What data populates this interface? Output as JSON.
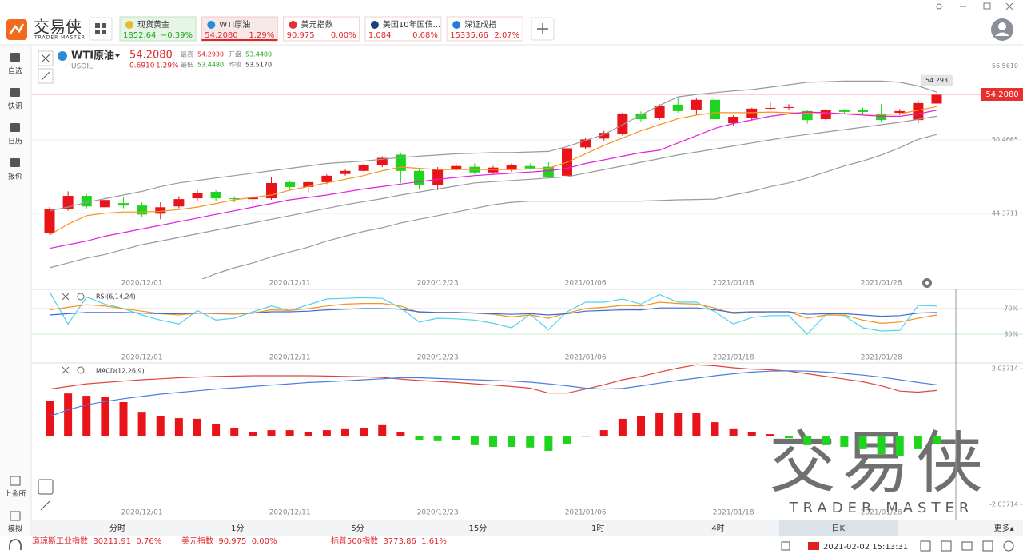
{
  "app": {
    "logo": "交易侠",
    "logo_sub": "TRADER MASTER"
  },
  "tickers": [
    {
      "name": "现货黄金",
      "price": "1852.64",
      "change": "−0.39%"
    },
    {
      "name": "WTI原油",
      "price": "54.2080",
      "change": "1.29%"
    },
    {
      "name": "美元指数",
      "price": "90.975",
      "change": "0.00%"
    },
    {
      "name": "美国10年国债...",
      "price": "1.084",
      "change": "0.68%"
    },
    {
      "name": "深证成指",
      "price": "15335.66",
      "change": "2.07%"
    }
  ],
  "sidebar_top": [
    "自选",
    "快讯",
    "日历",
    "报价"
  ],
  "sidebar_bottom": [
    "上金所",
    "模拟"
  ],
  "instrument": {
    "name": "WTI原油",
    "code": "USOIL",
    "price": "54.2080",
    "change": "0.6910",
    "change_pct": "1.29%",
    "stats": [
      {
        "label": "最高",
        "value": "54.2930"
      },
      {
        "label": "开盘",
        "value": "53.4480"
      },
      {
        "label": "最低",
        "value": "53.4480"
      },
      {
        "label": "昨收",
        "value": "53.5170"
      }
    ]
  },
  "chart_data": [
    {
      "type": "candlestick",
      "categories": [
        null,
        null,
        null,
        null,
        null,
        "2020/12/01",
        null,
        null,
        null,
        null,
        null,
        null,
        null,
        "2020/12/11",
        null,
        null,
        null,
        null,
        null,
        null,
        null,
        "2020/12/23",
        null,
        null,
        null,
        null,
        null,
        null,
        null,
        "2021/01/06",
        null,
        null,
        null,
        null,
        null,
        null,
        null,
        "2021/01/18",
        null,
        null,
        null,
        null,
        null,
        null,
        null,
        "2021/01/28",
        null,
        null,
        null
      ],
      "open": [
        42.76,
        44.76,
        45.83,
        44.89,
        45.23,
        45.03,
        44.36,
        44.96,
        45.63,
        46.16,
        45.63,
        45.56,
        45.63,
        46.96,
        46.56,
        46.96,
        47.63,
        47.89,
        48.36,
        49.23,
        47.89,
        46.69,
        48.03,
        48.23,
        47.76,
        47.96,
        48.29,
        48.23,
        47.49,
        49.83,
        50.56,
        50.96,
        52.63,
        52.23,
        53.36,
        52.96,
        53.76,
        51.83,
        52.23,
        53.03,
        53.09,
        52.83,
        52.16,
        52.89,
        52.89,
        52.63,
        52.69,
        52.09,
        53.448
      ],
      "high": [
        44.9,
        46.2,
        46.0,
        45.6,
        45.7,
        45.3,
        45.3,
        45.8,
        46.3,
        46.3,
        45.8,
        45.9,
        47.4,
        47.1,
        47.1,
        47.6,
        48.0,
        48.5,
        49.1,
        49.4,
        48.0,
        48.2,
        48.5,
        48.5,
        48.3,
        48.5,
        48.5,
        48.6,
        50.4,
        50.6,
        51.2,
        52.7,
        52.8,
        53.4,
        53.9,
        53.9,
        53.8,
        52.5,
        53.1,
        53.6,
        53.4,
        52.9,
        53.0,
        53.0,
        53.1,
        53.4,
        53.0,
        53.7,
        54.293
      ],
      "low": [
        42.6,
        44.6,
        44.8,
        44.7,
        44.8,
        44.1,
        43.9,
        44.8,
        45.4,
        45.4,
        45.3,
        44.9,
        45.5,
        46.3,
        46.1,
        46.8,
        47.5,
        47.8,
        48.2,
        46.9,
        46.4,
        46.3,
        47.9,
        47.6,
        47.6,
        47.8,
        48.0,
        47.3,
        47.3,
        49.7,
        50.4,
        50.8,
        51.9,
        52.1,
        52.7,
        52.5,
        52.0,
        51.6,
        52.1,
        52.9,
        52.9,
        51.8,
        52.0,
        52.6,
        52.5,
        51.9,
        52.5,
        51.8,
        53.448
      ],
      "close": [
        44.76,
        45.83,
        44.96,
        45.49,
        45.03,
        44.29,
        44.89,
        45.56,
        46.09,
        45.63,
        45.56,
        45.69,
        46.89,
        46.56,
        46.96,
        47.49,
        47.89,
        48.36,
        48.96,
        47.89,
        46.76,
        48.03,
        48.29,
        47.76,
        48.16,
        48.36,
        48.09,
        47.36,
        49.76,
        50.49,
        51.03,
        52.63,
        52.16,
        53.29,
        52.83,
        53.76,
        52.16,
        52.36,
        53.03,
        53.09,
        53.16,
        52.09,
        52.89,
        52.76,
        52.76,
        52.09,
        52.83,
        53.49,
        54.208
      ],
      "series": [
        {
          "color": "#9a9a9a",
          "values": [
            44.6,
            44.9,
            45.3,
            45.6,
            45.9,
            46.2,
            46.6,
            46.9,
            47.1,
            47.3,
            47.5,
            47.7,
            47.9,
            48.1,
            48.3,
            48.5,
            48.6,
            48.7,
            48.85,
            49.0,
            49.1,
            49.2,
            49.3,
            49.35,
            49.4,
            49.4,
            49.45,
            49.5,
            49.9,
            50.4,
            50.9,
            51.7,
            52.5,
            53.3,
            54.0,
            54.2,
            54.35,
            54.5,
            54.6,
            54.8,
            55.0,
            55.2,
            55.25,
            55.3,
            55.3,
            55.3,
            55.2,
            54.9,
            54.4
          ]
        },
        {
          "color": "#9a9a9a",
          "values": [
            39.9,
            40.3,
            40.7,
            41.0,
            41.4,
            41.8,
            42.1,
            42.4,
            42.7,
            43.0,
            43.3,
            43.6,
            43.9,
            44.2,
            44.5,
            44.8,
            45.1,
            45.35,
            45.6,
            45.9,
            46.15,
            46.4,
            46.65,
            46.9,
            47.0,
            47.1,
            47.2,
            47.3,
            47.4,
            47.7,
            48.0,
            48.3,
            48.6,
            48.9,
            49.2,
            49.45,
            49.7,
            49.95,
            50.2,
            50.45,
            50.7,
            50.9,
            51.1,
            51.3,
            51.5,
            51.7,
            51.9,
            52.15,
            52.4
          ]
        },
        {
          "color": "#9a9a9a",
          "values": [
            null,
            null,
            null,
            null,
            null,
            null,
            null,
            38.3,
            38.8,
            39.4,
            39.9,
            40.3,
            40.8,
            41.2,
            41.6,
            42.1,
            42.5,
            42.9,
            43.2,
            43.6,
            43.9,
            44.2,
            44.5,
            44.8,
            45.1,
            45.3,
            45.4,
            45.4,
            45.4,
            45.4,
            45.4,
            45.4,
            45.4,
            45.45,
            45.5,
            45.53,
            45.56,
            45.9,
            46.2,
            46.6,
            46.9,
            47.3,
            47.8,
            48.3,
            48.7,
            49.2,
            49.8,
            50.5,
            50.9
          ]
        },
        {
          "color": "#f7941d",
          "values": [
            42.6,
            43.5,
            44.2,
            44.4,
            44.5,
            44.5,
            44.55,
            44.7,
            44.9,
            45.2,
            45.5,
            45.7,
            45.9,
            46.3,
            46.6,
            46.9,
            47.2,
            47.5,
            47.9,
            48.2,
            48.1,
            48.0,
            48.0,
            48.0,
            48.0,
            48.0,
            48.05,
            48.1,
            48.6,
            49.3,
            50.0,
            50.6,
            51.2,
            51.7,
            52.2,
            52.5,
            52.7,
            52.7,
            52.7,
            52.75,
            52.7,
            52.65,
            52.6,
            52.6,
            52.6,
            52.55,
            52.6,
            52.9,
            53.2
          ]
        },
        {
          "color": "#e21ee2",
          "values": [
            41.5,
            41.8,
            42.1,
            42.5,
            42.8,
            43.1,
            43.4,
            43.7,
            44.0,
            44.3,
            44.6,
            44.9,
            45.2,
            45.5,
            45.7,
            45.9,
            46.15,
            46.4,
            46.6,
            46.8,
            47.0,
            47.2,
            47.35,
            47.5,
            47.6,
            47.7,
            47.8,
            47.9,
            48.1,
            48.5,
            48.8,
            49.1,
            49.4,
            49.6,
            50.2,
            50.8,
            51.4,
            51.8,
            52.1,
            52.4,
            52.6,
            52.75,
            52.7,
            52.6,
            52.5,
            52.4,
            52.4,
            52.6,
            52.9
          ]
        }
      ],
      "up_color": "#e8141a",
      "down_color": "#1ed41e",
      "ylim": [
        39.04,
        58.23
      ],
      "yticks": [
        {
          "value": 56.561,
          "label": "56.5610"
        },
        50.4665,
        44.3711
      ],
      "grid": true
    },
    {
      "type": "line",
      "title": "RSI(6,14,24)",
      "categories": [
        null,
        null,
        null,
        null,
        null,
        "2020/12/01",
        null,
        null,
        null,
        null,
        null,
        null,
        null,
        "2020/12/11",
        null,
        null,
        null,
        null,
        null,
        null,
        null,
        "2020/12/23",
        null,
        null,
        null,
        null,
        null,
        null,
        null,
        "2021/01/06",
        null,
        null,
        null,
        null,
        null,
        null,
        null,
        "2021/01/18",
        null,
        null,
        null,
        null,
        null,
        null,
        null,
        "2021/01/28",
        null,
        null,
        null
      ],
      "series": [
        {
          "color": "#4fd2f0",
          "values": [
            96,
            46,
            88,
            77,
            70,
            60,
            52,
            46,
            67,
            52,
            55,
            65,
            74,
            67,
            76,
            85,
            86,
            87,
            86,
            71,
            49,
            55,
            54,
            52,
            47,
            40,
            61,
            37,
            65,
            80,
            80,
            85,
            77,
            92,
            80,
            80,
            65,
            46,
            56,
            59,
            59,
            30,
            61,
            59,
            40,
            35,
            36,
            75,
            74
          ]
        },
        {
          "color": "#f7941d",
          "values": [
            68,
            72,
            76,
            74,
            70,
            66,
            62,
            60,
            63,
            62,
            61,
            63,
            68,
            67,
            70,
            74,
            77,
            78,
            78,
            74,
            64,
            64,
            64,
            63,
            61,
            57,
            60,
            55,
            63,
            70,
            72,
            75,
            74,
            80,
            78,
            77,
            71,
            62,
            64,
            65,
            65,
            55,
            60,
            60,
            52,
            47,
            49,
            55,
            60
          ]
        },
        {
          "color": "#3a6fd8",
          "values": [
            60,
            62,
            64,
            64,
            64,
            63,
            62,
            62,
            63,
            63,
            63,
            63,
            65,
            65,
            66,
            68,
            69,
            70,
            70,
            69,
            65,
            64,
            64,
            63,
            62,
            61,
            62,
            60,
            62,
            66,
            67,
            68,
            68,
            71,
            71,
            71,
            68,
            64,
            65,
            65,
            65,
            61,
            62,
            62,
            60,
            58,
            59,
            63,
            64
          ]
        }
      ],
      "ylim": [
        -12.5,
        100
      ],
      "yticks": [
        {
          "value": 70,
          "label": "70%"
        },
        {
          "value": 30,
          "label": "30%"
        }
      ],
      "grid": true
    },
    {
      "type": "bar",
      "title": "MACD(12,26,9)",
      "categories": [
        null,
        null,
        null,
        null,
        null,
        "2020/12/01",
        null,
        null,
        null,
        null,
        null,
        null,
        null,
        "2020/12/11",
        null,
        null,
        null,
        null,
        null,
        null,
        null,
        "2020/12/23",
        null,
        null,
        null,
        null,
        null,
        null,
        null,
        "2021/01/06",
        null,
        null,
        null,
        null,
        null,
        null,
        null,
        "2021/01/18",
        null,
        null,
        null,
        null,
        null,
        null,
        null,
        "2021/01/28",
        null,
        null,
        null
      ],
      "values": [
        1.06,
        1.29,
        1.22,
        1.18,
        1.03,
        0.74,
        0.6,
        0.55,
        0.53,
        0.38,
        0.24,
        0.14,
        0.19,
        0.19,
        0.14,
        0.19,
        0.22,
        0.26,
        0.34,
        0.14,
        -0.12,
        -0.14,
        -0.12,
        -0.26,
        -0.31,
        -0.31,
        -0.33,
        -0.43,
        -0.24,
        0.02,
        0.19,
        0.53,
        0.6,
        0.72,
        0.7,
        0.7,
        0.43,
        0.22,
        0.14,
        0.07,
        -0.05,
        -0.26,
        -0.26,
        -0.31,
        -0.38,
        -0.53,
        -0.58,
        -0.38,
        -0.24
      ],
      "series": [
        {
          "color": "#e0453a",
          "values": [
            1.42,
            1.5,
            1.58,
            1.62,
            1.66,
            1.7,
            1.73,
            1.76,
            1.78,
            1.8,
            1.81,
            1.82,
            1.82,
            1.82,
            1.82,
            1.81,
            1.8,
            1.79,
            1.77,
            1.72,
            1.68,
            1.65,
            1.62,
            1.58,
            1.54,
            1.5,
            1.45,
            1.3,
            1.3,
            1.42,
            1.55,
            1.7,
            1.8,
            1.93,
            2.05,
            2.15,
            2.12,
            2.06,
            2.02,
            2.0,
            1.96,
            1.88,
            1.8,
            1.72,
            1.64,
            1.52,
            1.36,
            1.33,
            1.38
          ]
        },
        {
          "color": "#4a7fe0",
          "values": [
            0.6,
            0.8,
            0.95,
            1.05,
            1.13,
            1.2,
            1.27,
            1.32,
            1.37,
            1.42,
            1.46,
            1.5,
            1.54,
            1.58,
            1.62,
            1.64,
            1.67,
            1.7,
            1.73,
            1.76,
            1.76,
            1.74,
            1.72,
            1.7,
            1.68,
            1.66,
            1.63,
            1.58,
            1.52,
            1.45,
            1.42,
            1.44,
            1.52,
            1.6,
            1.68,
            1.75,
            1.82,
            1.88,
            1.93,
            1.96,
            1.97,
            1.96,
            1.93,
            1.89,
            1.84,
            1.78,
            1.7,
            1.62,
            1.55
          ]
        }
      ],
      "up_color": "#e8141a",
      "down_color": "#1ed41e",
      "ylim": [
        -2.49,
        2.18
      ],
      "yticks": [
        2.03714,
        -2.03714
      ],
      "grid": false
    }
  ],
  "timeframes": [
    "分时",
    "1分",
    "5分",
    "15分",
    "1时",
    "4时",
    "日K",
    "更多▴"
  ],
  "timeframe_selected": 6,
  "status": {
    "datetime": "2021-02-02 15:13:31"
  },
  "ticker_tape": [
    "道琼斯工业指数  30211.91  0.76%",
    "美元指数  90.975  0.00%",
    "标普500指数  3773.86  1.61%"
  ],
  "watermark": {
    "title": "交易侠",
    "subtitle": "TRADER MASTER"
  }
}
